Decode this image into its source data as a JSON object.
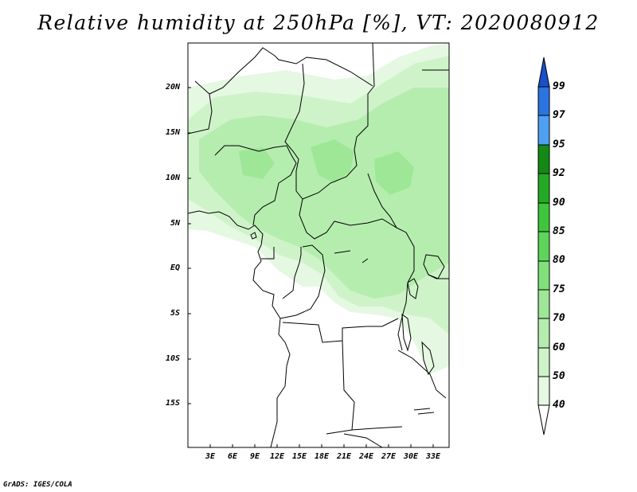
{
  "title": "Relative humidity at 250hPa [%], VT: 2020080912",
  "credit": "GrADS: IGES/COLA",
  "lat_labels": [
    "20N",
    "15N",
    "10N",
    "5N",
    "EQ",
    "5S",
    "10S",
    "15S"
  ],
  "lon_labels": [
    "3E",
    "6E",
    "9E",
    "12E",
    "15E",
    "18E",
    "21E",
    "24E",
    "27E",
    "30E",
    "33E"
  ],
  "colorbar": {
    "levels": [
      "40",
      "50",
      "60",
      "70",
      "75",
      "80",
      "85",
      "90",
      "92",
      "95",
      "97",
      "99"
    ],
    "colors": [
      "#ffffff",
      "#e5f8e2",
      "#cff3c9",
      "#b5edae",
      "#9ee796",
      "#80e07a",
      "#5fd45a",
      "#3ec53c",
      "#24a924",
      "#148a14",
      "#4ea0f0",
      "#2a74e0",
      "#1a50c8"
    ]
  },
  "humidity_colors": {
    "light": "#e5f8e2",
    "medium": "#cff3c9",
    "strong": "#b5edae",
    "deep": "#9ee796"
  }
}
